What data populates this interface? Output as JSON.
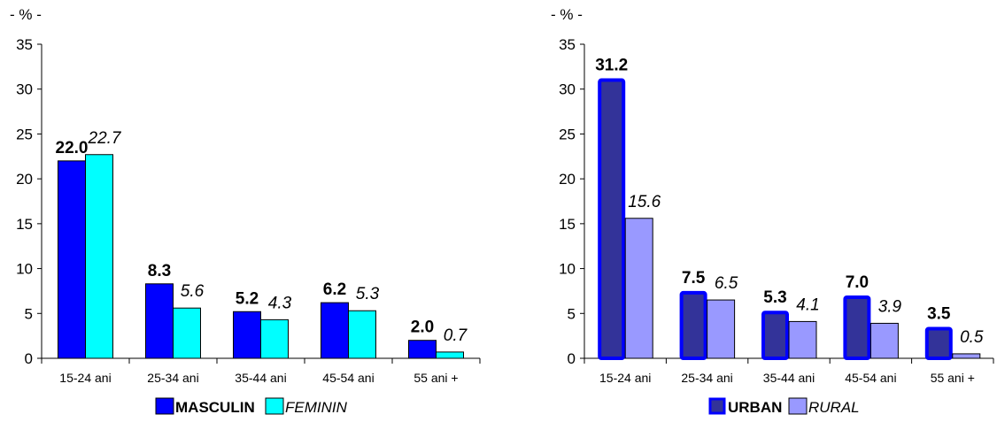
{
  "chart_data": [
    {
      "type": "bar",
      "ylabel": "- % -",
      "ylim": [
        0,
        35
      ],
      "yticks": [
        0,
        5,
        10,
        15,
        20,
        25,
        30,
        35
      ],
      "categories": [
        "15-24 ani",
        "25-34 ani",
        "35-44 ani",
        "45-54 ani",
        "55 ani +"
      ],
      "series": [
        {
          "name": "MASCULIN",
          "values": [
            22.0,
            8.3,
            5.2,
            6.2,
            2.0
          ],
          "labels": [
            "22.0",
            "8.3",
            "5.2",
            "6.2",
            "2.0"
          ],
          "color": "#0000ff",
          "label_style": "bold"
        },
        {
          "name": "FEMININ",
          "values": [
            22.7,
            5.6,
            4.3,
            5.3,
            0.7
          ],
          "labels": [
            "22.7",
            "5.6",
            "4.3",
            "5.3",
            "0.7"
          ],
          "color": "#00ffff",
          "label_style": "italic"
        }
      ],
      "legend_position": "bottom-center",
      "grid": false
    },
    {
      "type": "bar",
      "ylabel": "- % -",
      "ylim": [
        0,
        35
      ],
      "yticks": [
        0,
        5,
        10,
        15,
        20,
        25,
        30,
        35
      ],
      "categories": [
        "15-24 ani",
        "25-34 ani",
        "35-44 ani",
        "45-54 ani",
        "55 ani +"
      ],
      "series": [
        {
          "name": "URBAN",
          "values": [
            31.2,
            7.5,
            5.3,
            7.0,
            3.5
          ],
          "labels": [
            "31.2",
            "7.5",
            "5.3",
            "7.0",
            "3.5"
          ],
          "color": "#333399",
          "border_color": "#0000ff",
          "label_style": "bold"
        },
        {
          "name": "RURAL",
          "values": [
            15.6,
            6.5,
            4.1,
            3.9,
            0.5
          ],
          "labels": [
            "15.6",
            "6.5",
            "4.1",
            "3.9",
            "0.5"
          ],
          "color": "#9999ff",
          "label_style": "italic"
        }
      ],
      "legend_position": "bottom-center",
      "grid": false
    }
  ]
}
